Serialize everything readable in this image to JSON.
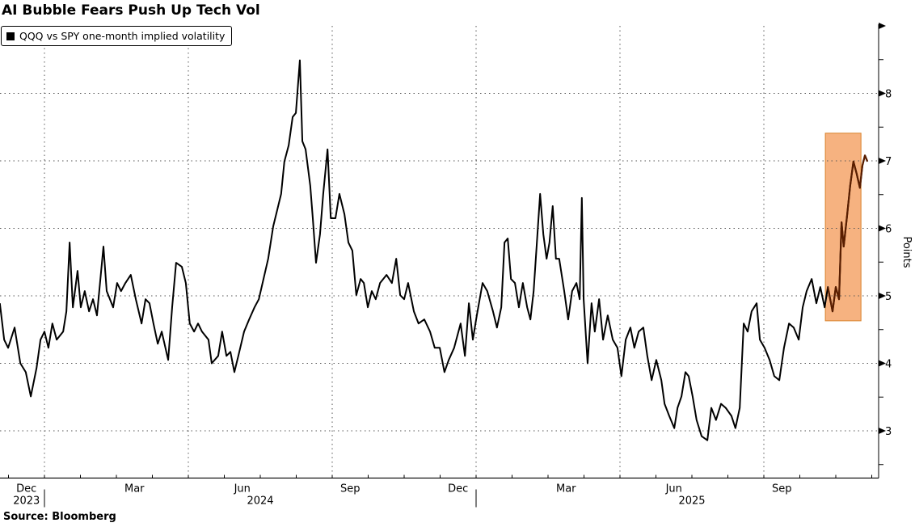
{
  "chart_data": {
    "type": "line",
    "title": "AI Bubble Fears Push Up Tech Vol",
    "legend": [
      "QQQ vs SPY one-month implied volatility"
    ],
    "legend_placement": "top-left",
    "ylabel": "Points",
    "xlabel": "",
    "source": "Source: Bloomberg",
    "x_units": "months since 2024-01-01",
    "ylim": [
      2.3,
      9
    ],
    "xlim": [
      -1.24,
      23.2
    ],
    "y_ticks": [
      3,
      4,
      5,
      6,
      7,
      8
    ],
    "x_month_labels": [
      {
        "label": "Dec",
        "m": -0.5
      },
      {
        "label": "Mar",
        "m": 2.5
      },
      {
        "label": "Jun",
        "m": 5.5
      },
      {
        "label": "Sep",
        "m": 8.5
      },
      {
        "label": "Dec",
        "m": 11.5
      },
      {
        "label": "Mar",
        "m": 14.5
      },
      {
        "label": "Jun",
        "m": 17.5
      },
      {
        "label": "Sep",
        "m": 20.5
      }
    ],
    "x_year_labels": [
      {
        "label": "2023",
        "m": -0.5
      },
      {
        "label": "2024",
        "m": 6
      },
      {
        "label": "2025",
        "m": 18
      }
    ],
    "grid": true,
    "highlight": {
      "x_range": [
        21.71,
        22.7
      ],
      "y_range": [
        4.63,
        7.41
      ],
      "color": "#f4a46a"
    },
    "line_color": "#000000",
    "highlight_line_color": "#5a1e00",
    "series": [
      {
        "name": "QQQ vs SPY one-month implied volatility",
        "x": [
          -1.24,
          -1.12,
          -1.01,
          -0.83,
          -0.67,
          -0.52,
          -0.38,
          -0.22,
          -0.11,
          0,
          0.11,
          0.22,
          0.34,
          0.52,
          0.61,
          0.7,
          0.79,
          0.92,
          1.01,
          1.12,
          1.24,
          1.35,
          1.46,
          1.64,
          1.73,
          1.91,
          2.02,
          2.13,
          2.25,
          2.4,
          2.54,
          2.7,
          2.81,
          2.92,
          3.03,
          3.15,
          3.26,
          3.44,
          3.55,
          3.66,
          3.82,
          3.93,
          4.04,
          4.16,
          4.27,
          4.38,
          4.56,
          4.65,
          4.83,
          4.94,
          5.06,
          5.17,
          5.28,
          5.39,
          5.55,
          5.69,
          5.84,
          5.96,
          6.09,
          6.22,
          6.36,
          6.47,
          6.58,
          6.67,
          6.79,
          6.9,
          6.99,
          7.1,
          7.17,
          7.26,
          7.39,
          7.46,
          7.55,
          7.66,
          7.75,
          7.87,
          7.96,
          8.09,
          8.2,
          8.34,
          8.45,
          8.56,
          8.67,
          8.79,
          8.88,
          8.99,
          9.1,
          9.21,
          9.33,
          9.51,
          9.66,
          9.78,
          9.89,
          10.0,
          10.11,
          10.27,
          10.4,
          10.56,
          10.72,
          10.85,
          10.99,
          11.12,
          11.24,
          11.39,
          11.57,
          11.69,
          11.8,
          11.91,
          12.02,
          12.18,
          12.31,
          12.47,
          12.58,
          12.7,
          12.79,
          12.88,
          12.97,
          13.08,
          13.19,
          13.3,
          13.42,
          13.51,
          13.6,
          13.69,
          13.78,
          13.87,
          13.96,
          14.04,
          14.13,
          14.22,
          14.31,
          14.45,
          14.56,
          14.67,
          14.79,
          14.88,
          14.94,
          14.99,
          15.1,
          15.21,
          15.3,
          15.42,
          15.53,
          15.66,
          15.8,
          15.93,
          16.04,
          16.16,
          16.29,
          16.4,
          16.52,
          16.65,
          16.76,
          16.88,
          17.01,
          17.15,
          17.24,
          17.37,
          17.51,
          17.6,
          17.71,
          17.82,
          17.91,
          18.02,
          18.13,
          18.27,
          18.43,
          18.54,
          18.67,
          18.81,
          18.94,
          19.1,
          19.21,
          19.33,
          19.44,
          19.55,
          19.66,
          19.8,
          19.89,
          20.02,
          20.16,
          20.29,
          20.43,
          20.56,
          20.7,
          20.83,
          20.97,
          21.08,
          21.19,
          21.33,
          21.46,
          21.57,
          21.69,
          21.78,
          21.91,
          22.0,
          22.09,
          22.16,
          22.22,
          22.31,
          22.4,
          22.49,
          22.58,
          22.67,
          22.74,
          22.81,
          22.88
        ],
        "y": [
          4.89,
          4.35,
          4.23,
          4.53,
          4.0,
          3.87,
          3.51,
          3.93,
          4.35,
          4.47,
          4.23,
          4.59,
          4.35,
          4.47,
          4.77,
          5.79,
          4.83,
          5.37,
          4.83,
          5.07,
          4.77,
          4.95,
          4.71,
          5.73,
          5.07,
          4.83,
          5.19,
          5.07,
          5.19,
          5.31,
          4.95,
          4.59,
          4.95,
          4.89,
          4.59,
          4.29,
          4.47,
          4.05,
          4.83,
          5.49,
          5.43,
          5.19,
          4.59,
          4.47,
          4.59,
          4.47,
          4.35,
          4.0,
          4.11,
          4.47,
          4.11,
          4.17,
          3.87,
          4.11,
          4.47,
          4.65,
          4.83,
          4.95,
          5.25,
          5.55,
          6.03,
          6.27,
          6.51,
          6.99,
          7.23,
          7.65,
          7.71,
          8.49,
          7.29,
          7.17,
          6.63,
          6.15,
          5.49,
          5.91,
          6.51,
          7.17,
          6.15,
          6.15,
          6.51,
          6.21,
          5.79,
          5.67,
          5.01,
          5.25,
          5.19,
          4.83,
          5.07,
          4.95,
          5.19,
          5.31,
          5.19,
          5.55,
          5.01,
          4.95,
          5.19,
          4.77,
          4.59,
          4.65,
          4.47,
          4.23,
          4.23,
          3.87,
          4.05,
          4.23,
          4.59,
          4.11,
          4.89,
          4.35,
          4.71,
          5.19,
          5.07,
          4.77,
          4.53,
          4.83,
          5.79,
          5.85,
          5.25,
          5.19,
          4.83,
          5.19,
          4.83,
          4.65,
          5.07,
          5.79,
          6.51,
          5.91,
          5.55,
          5.79,
          6.33,
          5.55,
          5.55,
          5.07,
          4.65,
          5.07,
          5.19,
          4.95,
          6.45,
          4.95,
          4.0,
          4.89,
          4.47,
          4.95,
          4.35,
          4.71,
          4.35,
          4.23,
          3.81,
          4.35,
          4.53,
          4.23,
          4.47,
          4.53,
          4.11,
          3.75,
          4.05,
          3.75,
          3.4,
          3.22,
          3.04,
          3.34,
          3.51,
          3.87,
          3.81,
          3.51,
          3.16,
          2.92,
          2.86,
          3.34,
          3.16,
          3.4,
          3.34,
          3.22,
          3.04,
          3.34,
          4.59,
          4.47,
          4.77,
          4.89,
          4.35,
          4.23,
          4.05,
          3.81,
          3.75,
          4.23,
          4.59,
          4.53,
          4.35,
          4.83,
          5.07,
          5.25,
          4.89,
          5.13,
          4.83,
          5.13,
          4.77,
          5.13,
          4.95,
          6.09,
          5.73,
          6.17,
          6.63,
          6.99,
          6.81,
          6.6,
          6.93,
          7.08,
          6.99
        ]
      }
    ]
  }
}
